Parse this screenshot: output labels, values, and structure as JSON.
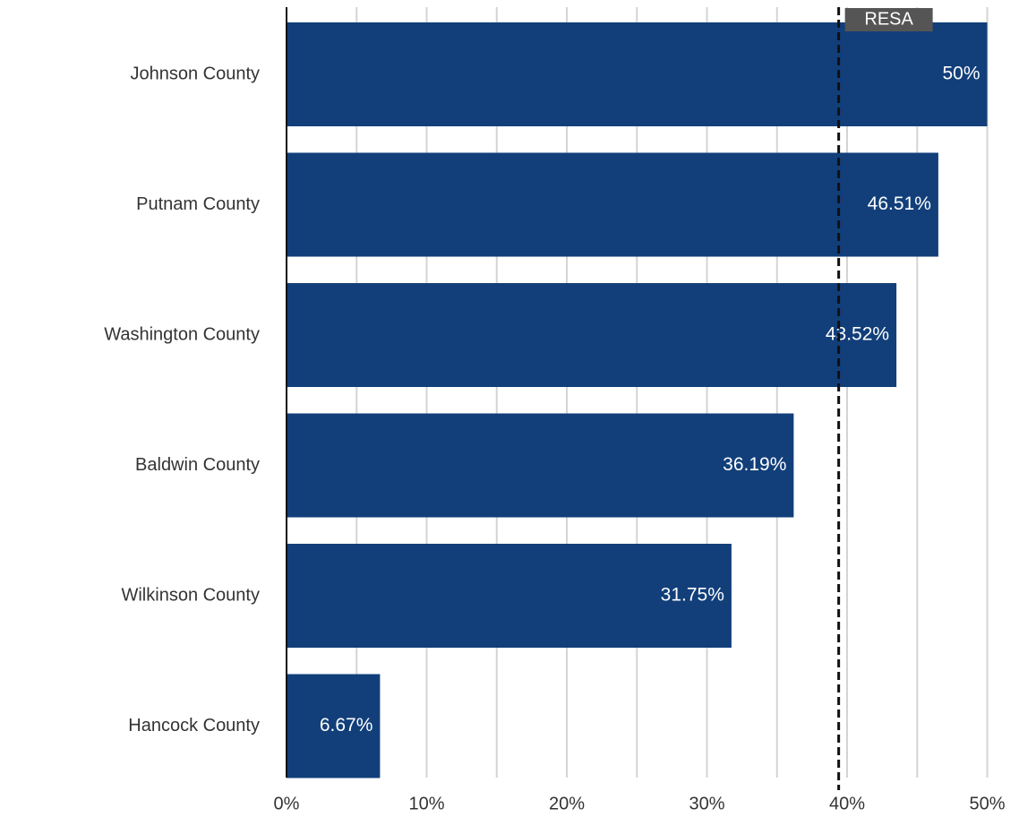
{
  "chart_data": {
    "type": "bar",
    "orientation": "horizontal",
    "categories": [
      "Johnson County",
      "Putnam County",
      "Washington County",
      "Baldwin County",
      "Wilkinson County",
      "Hancock County"
    ],
    "values": [
      50,
      46.51,
      43.52,
      36.19,
      31.75,
      6.67
    ],
    "data_labels": [
      "50%",
      "46.51%",
      "43.52%",
      "36.19%",
      "31.75%",
      "6.67%"
    ],
    "xlim": [
      0,
      51.5
    ],
    "x_ticks": [
      0,
      10,
      20,
      30,
      40,
      50
    ],
    "x_tick_labels": [
      "0%",
      "10%",
      "20%",
      "30%",
      "40%",
      "50%"
    ],
    "minor_grid_step": 5,
    "grid": true,
    "bar_color": "#123f7a",
    "reference_line": {
      "value": 39.4,
      "label": "RESA",
      "style": "dashed",
      "label_bg": "#555555"
    },
    "title": "",
    "xlabel": "",
    "ylabel": ""
  }
}
